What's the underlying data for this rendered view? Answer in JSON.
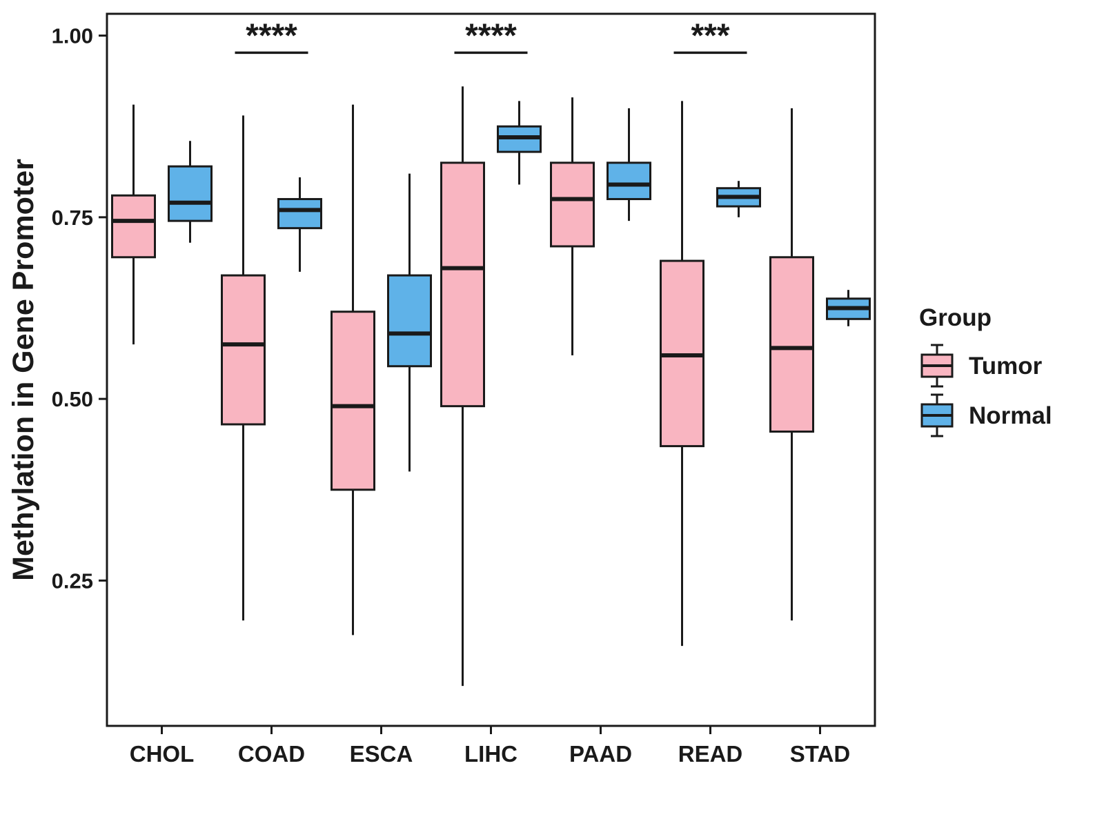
{
  "chart_data": {
    "type": "boxplot",
    "title": "",
    "xlabel": "",
    "ylabel": "Methylation in Gene Promoter",
    "ylim": [
      0.05,
      1.03
    ],
    "grid": false,
    "legend_position": "right",
    "yticks": {
      "values": [
        0.25,
        0.5,
        0.75,
        1.0
      ],
      "labels": [
        "0.25",
        "0.50",
        "0.75",
        "1.00"
      ]
    },
    "categories": [
      "CHOL",
      "COAD",
      "ESCA",
      "LIHC",
      "PAAD",
      "READ",
      "STAD"
    ],
    "colors": {
      "tumor": "#F9B5C1",
      "normal": "#5FB2E8",
      "stroke": "#1A1A1A"
    },
    "legend": {
      "title": "Group",
      "entries": [
        {
          "label": "Tumor",
          "color": "#F9B5C1"
        },
        {
          "label": "Normal",
          "color": "#5FB2E8"
        }
      ]
    },
    "series": [
      {
        "name": "Tumor",
        "color": "#F9B5C1",
        "boxes": [
          {
            "category": "CHOL",
            "whisker_low": 0.575,
            "q1": 0.695,
            "median": 0.745,
            "q3": 0.78,
            "whisker_high": 0.905
          },
          {
            "category": "COAD",
            "whisker_low": 0.195,
            "q1": 0.465,
            "median": 0.575,
            "q3": 0.67,
            "whisker_high": 0.89
          },
          {
            "category": "ESCA",
            "whisker_low": 0.175,
            "q1": 0.375,
            "median": 0.49,
            "q3": 0.62,
            "whisker_high": 0.905
          },
          {
            "category": "LIHC",
            "whisker_low": 0.105,
            "q1": 0.49,
            "median": 0.68,
            "q3": 0.825,
            "whisker_high": 0.93
          },
          {
            "category": "PAAD",
            "whisker_low": 0.56,
            "q1": 0.71,
            "median": 0.775,
            "q3": 0.825,
            "whisker_high": 0.915
          },
          {
            "category": "READ",
            "whisker_low": 0.16,
            "q1": 0.435,
            "median": 0.56,
            "q3": 0.69,
            "whisker_high": 0.91
          },
          {
            "category": "STAD",
            "whisker_low": 0.195,
            "q1": 0.455,
            "median": 0.57,
            "q3": 0.695,
            "whisker_high": 0.9
          }
        ]
      },
      {
        "name": "Normal",
        "color": "#5FB2E8",
        "boxes": [
          {
            "category": "CHOL",
            "whisker_low": 0.715,
            "q1": 0.745,
            "median": 0.77,
            "q3": 0.82,
            "whisker_high": 0.855
          },
          {
            "category": "COAD",
            "whisker_low": 0.675,
            "q1": 0.735,
            "median": 0.76,
            "q3": 0.775,
            "whisker_high": 0.805
          },
          {
            "category": "ESCA",
            "whisker_low": 0.4,
            "q1": 0.545,
            "median": 0.59,
            "q3": 0.67,
            "whisker_high": 0.81
          },
          {
            "category": "LIHC",
            "whisker_low": 0.795,
            "q1": 0.84,
            "median": 0.86,
            "q3": 0.875,
            "whisker_high": 0.91
          },
          {
            "category": "PAAD",
            "whisker_low": 0.745,
            "q1": 0.775,
            "median": 0.795,
            "q3": 0.825,
            "whisker_high": 0.9
          },
          {
            "category": "READ",
            "whisker_low": 0.75,
            "q1": 0.765,
            "median": 0.778,
            "q3": 0.79,
            "whisker_high": 0.8
          },
          {
            "category": "STAD",
            "whisker_low": 0.6,
            "q1": 0.61,
            "median": 0.625,
            "q3": 0.638,
            "whisker_high": 0.65
          }
        ]
      }
    ],
    "annotations": [
      {
        "category": "COAD",
        "label": "****",
        "y": 0.985
      },
      {
        "category": "LIHC",
        "label": "****",
        "y": 0.985
      },
      {
        "category": "READ",
        "label": "***",
        "y": 0.985
      }
    ]
  }
}
